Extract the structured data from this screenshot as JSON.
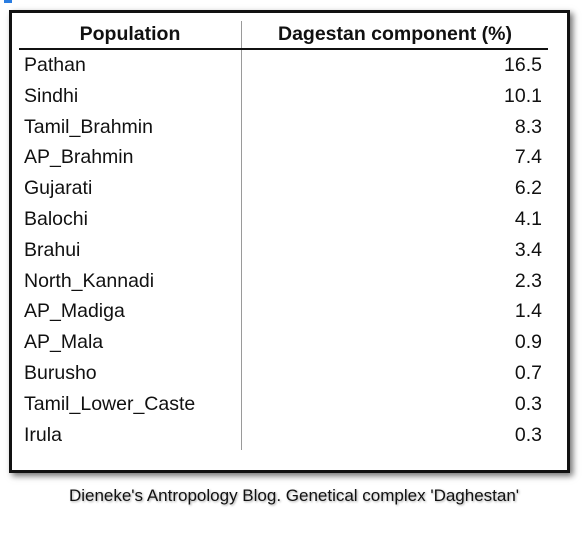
{
  "table": {
    "headers": [
      "Population",
      "Dagestan component (%)"
    ],
    "rows": [
      [
        "Pathan",
        "16.5"
      ],
      [
        "Sindhi",
        "10.1"
      ],
      [
        "Tamil_Brahmin",
        "8.3"
      ],
      [
        "AP_Brahmin",
        "7.4"
      ],
      [
        "Gujarati",
        "6.2"
      ],
      [
        "Balochi",
        "4.1"
      ],
      [
        "Brahui",
        "3.4"
      ],
      [
        "North_Kannadi",
        "2.3"
      ],
      [
        "AP_Madiga",
        "1.4"
      ],
      [
        "AP_Mala",
        "0.9"
      ],
      [
        "Burusho",
        "0.7"
      ],
      [
        "Tamil_Lower_Caste",
        "0.3"
      ],
      [
        "Irula",
        "0.3"
      ]
    ]
  },
  "caption": "Dieneke's Antropology Blog. Genetical complex 'Daghestan'"
}
